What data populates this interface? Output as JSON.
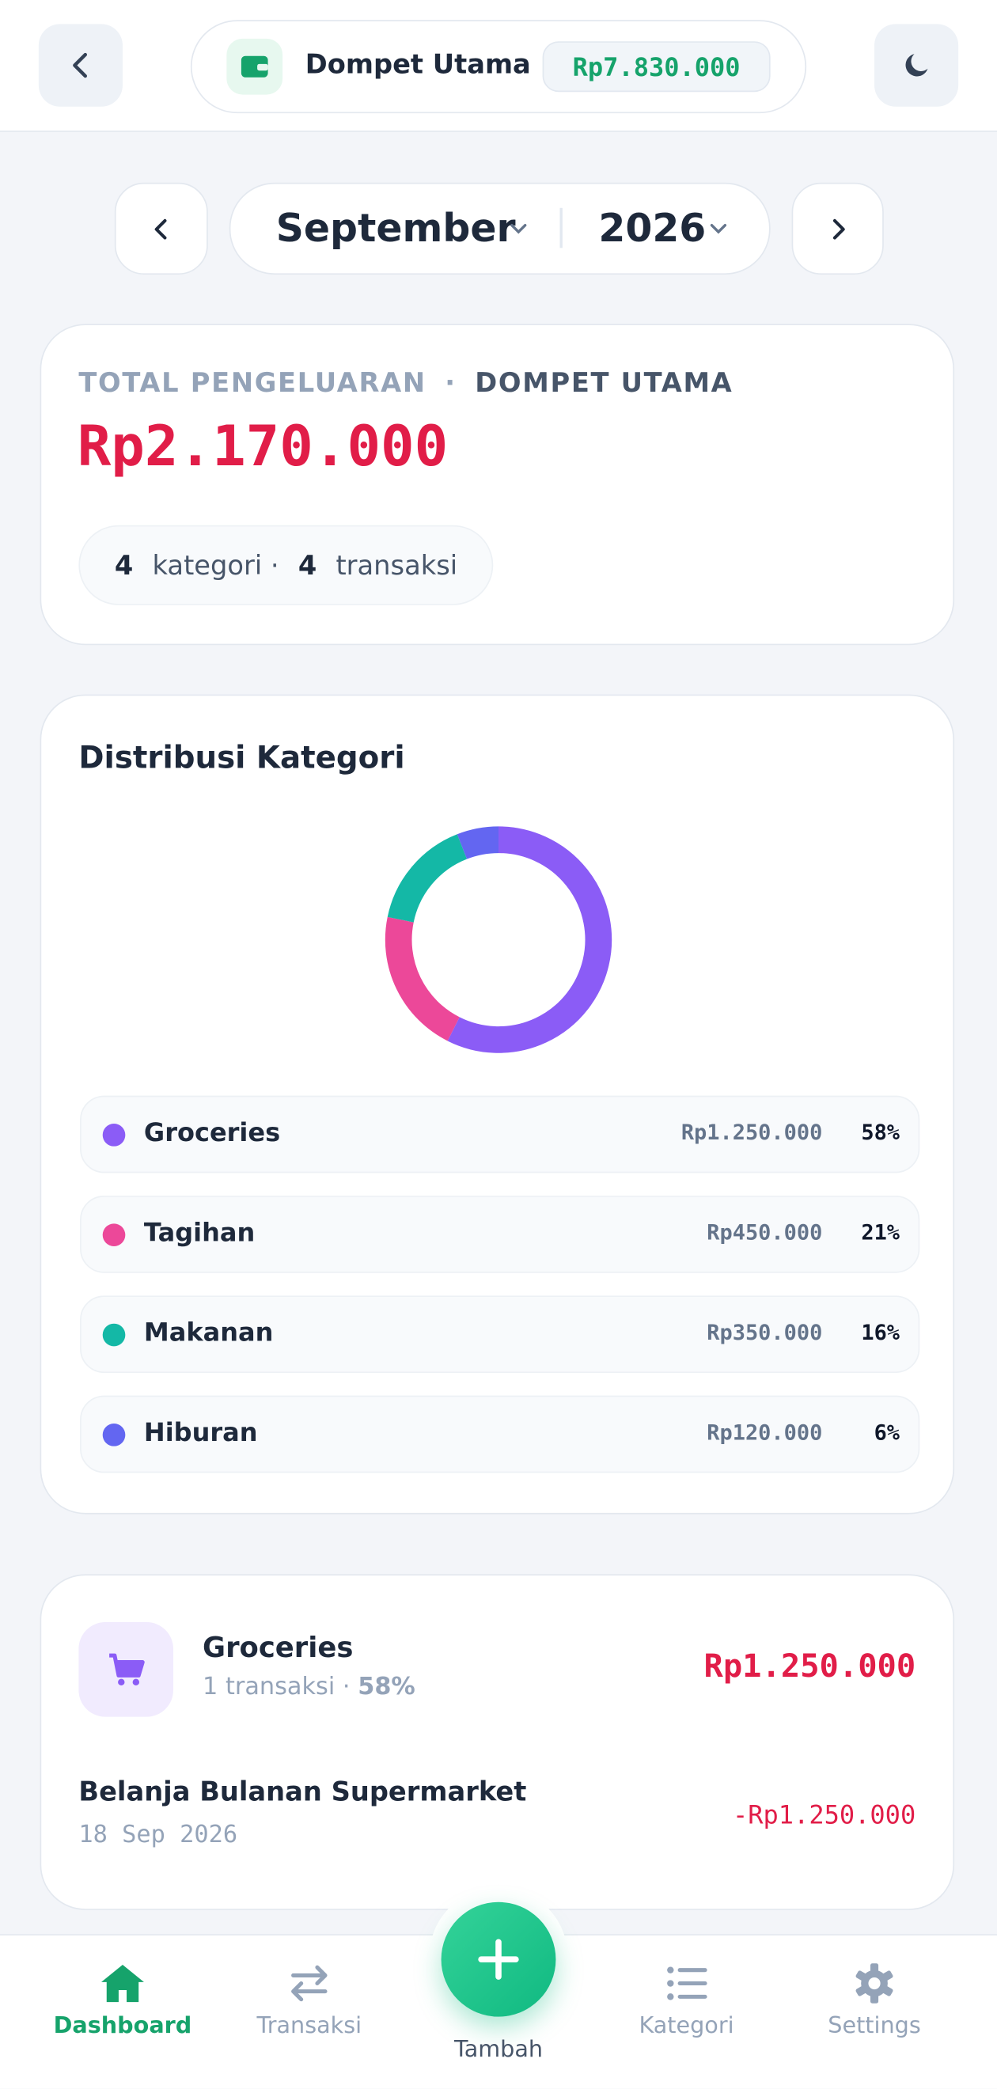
{
  "header": {
    "wallet_name": "Dompet Utama",
    "wallet_balance": "Rp7.830.000"
  },
  "period": {
    "month": "September",
    "year": "2026"
  },
  "summary": {
    "label": "TOTAL PENGELUARAN",
    "separator": "·",
    "wallet": "DOMPET UTAMA",
    "total": "Rp2.170.000",
    "category_count": 4,
    "category_label": "kategori ·",
    "transaction_count": 4,
    "transaction_label": "transaksi"
  },
  "distribution": {
    "chart_data": {
      "type": "pie",
      "donut": true,
      "title": "Distribusi Kategori",
      "categories": [
        "Groceries",
        "Tagihan",
        "Makanan",
        "Hiburan"
      ],
      "colors": [
        "#8b5cf6",
        "#ec4899",
        "#14b8a6",
        "#6366f1"
      ],
      "amounts": [
        "Rp1.250.000",
        "Rp450.000",
        "Rp350.000",
        "Rp120.000"
      ],
      "values": [
        58,
        21,
        16,
        6
      ],
      "value_labels": [
        "58%",
        "21%",
        "16%",
        "6%"
      ]
    }
  },
  "group": {
    "category": "Groceries",
    "count": "1 transaksi ·",
    "percent": "58%",
    "total": "Rp1.250.000",
    "transactions": [
      {
        "title": "Belanja Bulanan Supermarket",
        "date": "18 Sep 2026",
        "amount": "-Rp1.250.000"
      }
    ]
  },
  "nav": [
    {
      "label": "Dashboard"
    },
    {
      "label": "Transaksi"
    },
    {
      "label": "Tambah"
    },
    {
      "label": "Kategori"
    },
    {
      "label": "Settings"
    }
  ]
}
